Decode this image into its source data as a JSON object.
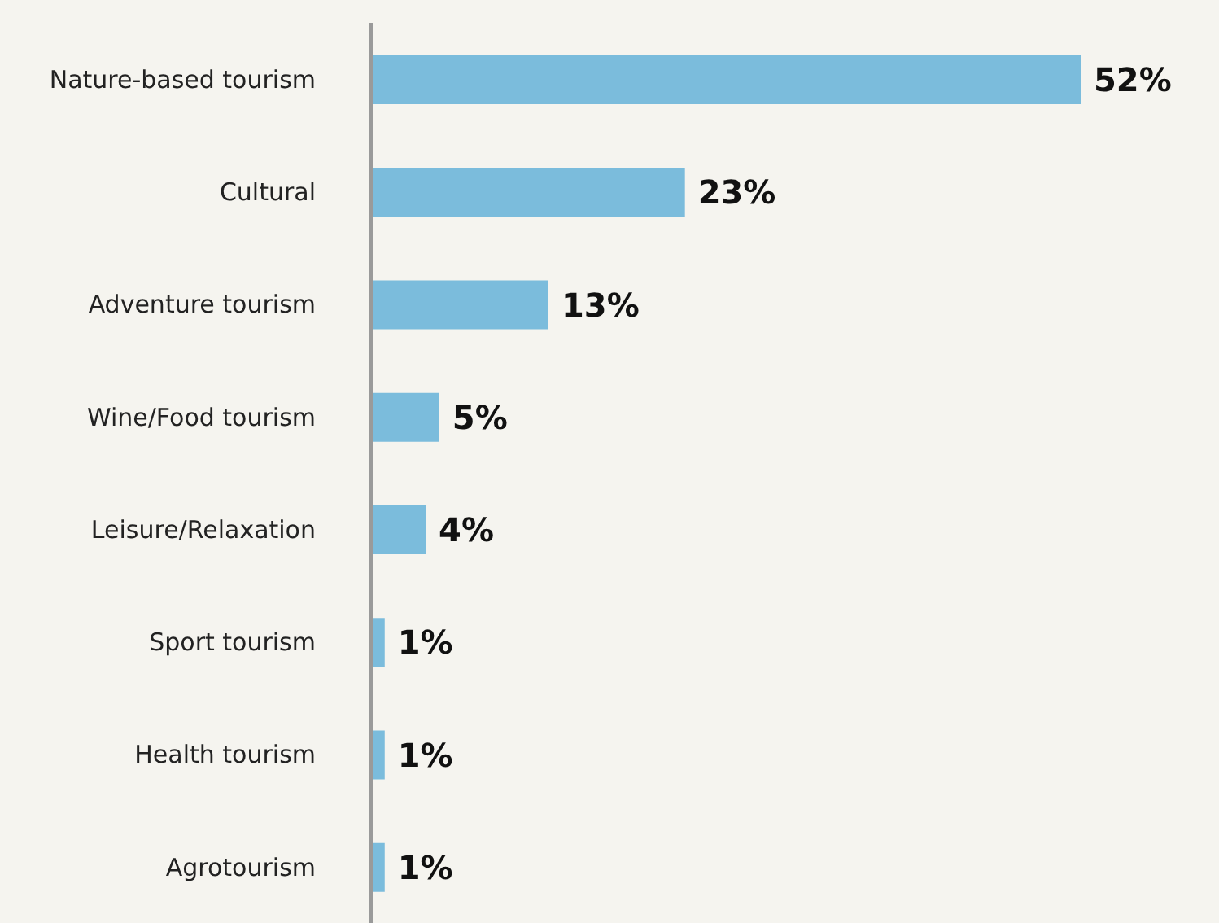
{
  "chart_data": {
    "type": "bar",
    "orientation": "horizontal",
    "categories": [
      "Nature-based tourism",
      "Cultural",
      "Adventure tourism",
      "Wine/Food tourism",
      "Leisure/Relaxation",
      "Sport tourism",
      "Health tourism",
      "Agrotourism"
    ],
    "values": [
      52,
      23,
      13,
      5,
      4,
      1,
      1,
      1
    ],
    "value_labels": [
      "52%",
      "23%",
      "13%",
      "5%",
      "4%",
      "1%",
      "1%",
      "1%"
    ],
    "color": "#7bbcdc",
    "legend": false,
    "grid": false
  }
}
